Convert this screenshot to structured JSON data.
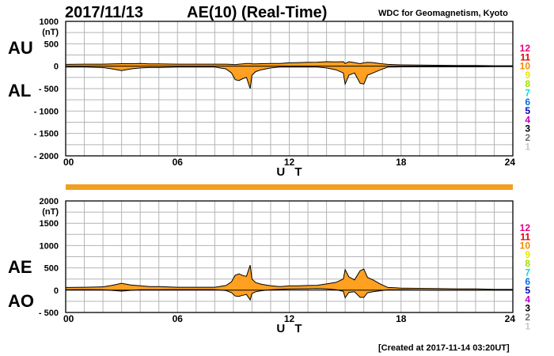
{
  "header": {
    "date": "2017/11/13",
    "title": "AE(10) (Real-Time)",
    "source": "WDC for Geomagnetism, Kyoto"
  },
  "footer": "[Created at 2017-11-14 03:20UT]",
  "count_labels": [
    "12",
    "11",
    "10",
    "9",
    "8",
    "7",
    "6",
    "5",
    "4",
    "3",
    "2",
    "1"
  ],
  "count_colors": [
    "#e8007a",
    "#e00000",
    "#f08c00",
    "#e8e800",
    "#a0e000",
    "#00e0e0",
    "#0070e0",
    "#0000b0",
    "#c000c0",
    "#000000",
    "#707070",
    "#c8c8c8"
  ],
  "colors": {
    "fill": "#ffa020",
    "line": "#000000",
    "grid": "#b4b4b4",
    "status_bar": "#f0a020"
  },
  "chart_data": [
    {
      "type": "area",
      "panel": "AU/AL",
      "series_labels": [
        "AU",
        "AL"
      ],
      "unit_label": "(nT)",
      "xlabel": "U T",
      "x_ticks": [
        "00",
        "06",
        "12",
        "18",
        "24"
      ],
      "y_ticks": [
        "1000",
        "500",
        "0",
        "- 500",
        "- 1000",
        "- 1500",
        "- 2000"
      ],
      "ylim": [
        -2000,
        1000
      ],
      "xlim": [
        0,
        24
      ],
      "grid": true,
      "x": [
        0,
        1,
        2,
        2.5,
        3,
        3.5,
        4,
        4.5,
        5,
        6,
        7,
        8,
        8.6,
        8.9,
        9.1,
        9.3,
        9.5,
        9.7,
        9.9,
        10.0,
        10.2,
        10.5,
        11,
        11.5,
        12,
        12.5,
        13,
        13.5,
        14,
        14.5,
        14.9,
        15.0,
        15.2,
        15.5,
        15.8,
        16.0,
        16.2,
        16.5,
        16.9,
        17.3,
        17.7,
        18,
        19,
        20,
        21,
        22,
        23,
        24
      ],
      "series": [
        {
          "name": "AU",
          "values": [
            40,
            45,
            45,
            50,
            55,
            55,
            60,
            50,
            50,
            45,
            45,
            45,
            45,
            40,
            35,
            45,
            50,
            60,
            60,
            50,
            50,
            55,
            60,
            60,
            75,
            80,
            85,
            90,
            100,
            95,
            100,
            60,
            100,
            80,
            55,
            75,
            85,
            80,
            55,
            40,
            35,
            30,
            25,
            20,
            15,
            15,
            10,
            10
          ]
        },
        {
          "name": "AL",
          "values": [
            -20,
            -20,
            -30,
            -60,
            -100,
            -60,
            -40,
            -30,
            -30,
            -20,
            -20,
            -20,
            -60,
            -150,
            -300,
            -320,
            -280,
            -250,
            -500,
            -200,
            -120,
            -80,
            -40,
            -20,
            -20,
            -20,
            -20,
            -20,
            -40,
            -80,
            -150,
            -400,
            -200,
            -150,
            -380,
            -400,
            -200,
            -150,
            -80,
            -20,
            -20,
            -15,
            -15,
            -15,
            -15,
            -15,
            -10,
            -10
          ]
        }
      ]
    },
    {
      "type": "area",
      "panel": "AE/AO",
      "series_labels": [
        "AE",
        "AO"
      ],
      "unit_label": "(nT)",
      "xlabel": "U T",
      "x_ticks": [
        "00",
        "06",
        "12",
        "18",
        "24"
      ],
      "y_ticks": [
        "2000",
        "1500",
        "1000",
        "500",
        "0",
        "- 500"
      ],
      "ylim": [
        -500,
        2000
      ],
      "xlim": [
        0,
        24
      ],
      "grid": true,
      "x": [
        0,
        1,
        2,
        2.5,
        3,
        3.5,
        4,
        4.5,
        5,
        6,
        7,
        8,
        8.6,
        8.9,
        9.1,
        9.3,
        9.5,
        9.7,
        9.9,
        10.0,
        10.2,
        10.5,
        11,
        11.5,
        12,
        12.5,
        13,
        13.5,
        14,
        14.5,
        14.9,
        15.0,
        15.2,
        15.5,
        15.8,
        16.0,
        16.2,
        16.5,
        16.9,
        17.3,
        17.7,
        18,
        19,
        20,
        21,
        22,
        23,
        24
      ],
      "series": [
        {
          "name": "AE",
          "values": [
            60,
            65,
            75,
            110,
            155,
            115,
            100,
            80,
            80,
            65,
            65,
            65,
            105,
            190,
            335,
            365,
            330,
            310,
            560,
            250,
            170,
            135,
            100,
            80,
            95,
            100,
            105,
            110,
            140,
            175,
            250,
            460,
            300,
            230,
            435,
            475,
            285,
            230,
            135,
            60,
            55,
            45,
            40,
            35,
            30,
            30,
            20,
            20
          ]
        },
        {
          "name": "AO",
          "values": [
            10,
            12,
            8,
            -5,
            -22,
            -3,
            10,
            10,
            10,
            12,
            12,
            12,
            -8,
            -55,
            -132,
            -138,
            -115,
            -95,
            -220,
            -75,
            -35,
            -12,
            10,
            20,
            27,
            30,
            32,
            35,
            30,
            8,
            -25,
            -170,
            -50,
            -35,
            -162,
            -162,
            -58,
            -35,
            -12,
            10,
            7,
            8,
            5,
            2,
            0,
            0,
            0,
            0
          ]
        }
      ]
    }
  ]
}
